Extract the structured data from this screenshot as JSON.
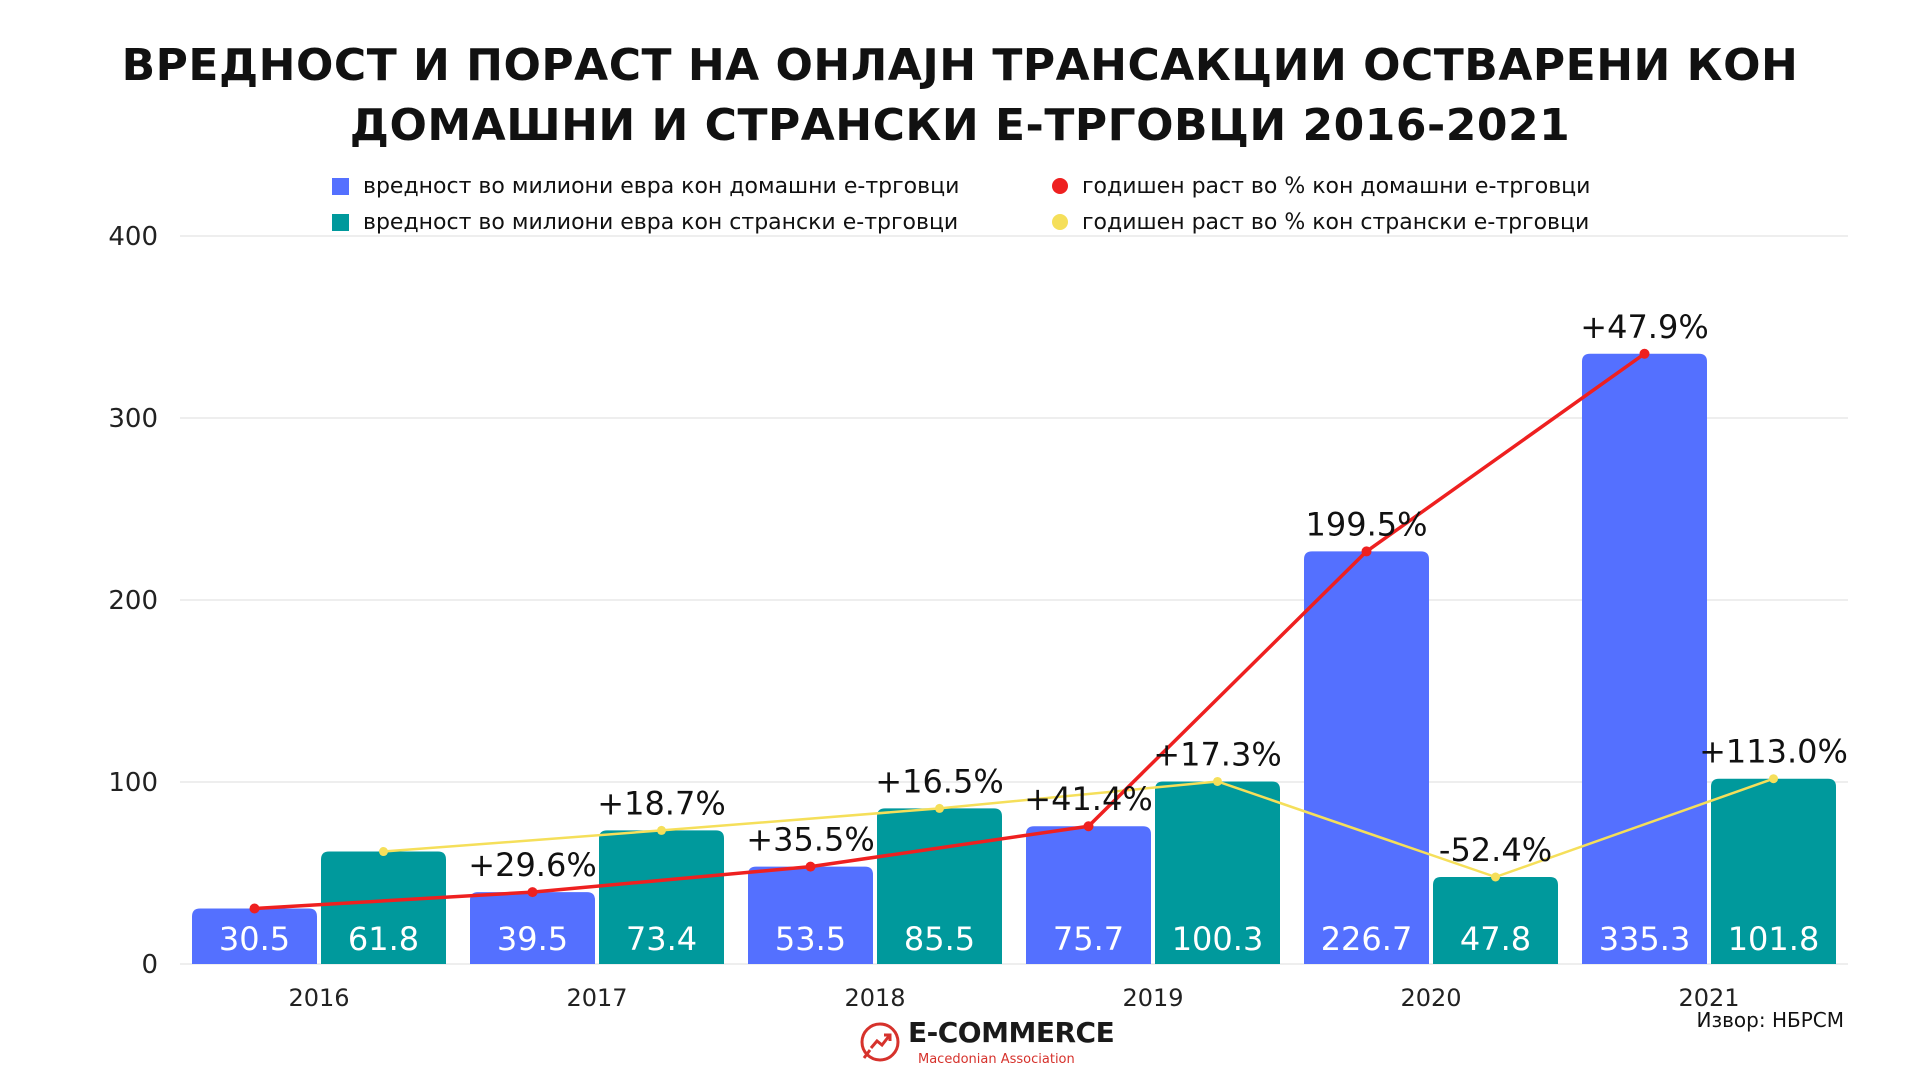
{
  "title_lines": [
    "ВРЕДНОСТ И ПОРАСТ НА ОНЛАЈН ТРАНСАКЦИИ ОСТВАРЕНИ КОН",
    "ДОМАШНИ И СТРАНСКИ Е-ТРГОВЦИ 2016-2021"
  ],
  "legend": {
    "domestic_value": "вредност во милиони евра кон домашни е-трговци",
    "foreign_value": "вредност во милиони евра кон странски е-трговци",
    "domestic_growth": "годишен раст во % кон домашни е-трговци",
    "foreign_growth": "годишен раст во % кон странски е-трговци"
  },
  "source": "Извор: НБРСМ",
  "logo": {
    "main": "E-COMMERCE",
    "sub": "Macedonian Association"
  },
  "colors": {
    "domestic": "#5470FF",
    "foreign": "#00999C",
    "domestic_growth": "#EE2020",
    "foreign_growth": "#F5DF5A",
    "grid": "#dddddd"
  },
  "chart_data": {
    "type": "bar",
    "title": "ВРЕДНОСТ И ПОРАСТ НА ОНЛАЈН ТРАНСАКЦИИ ОСТВАРЕНИ КОН ДОМАШНИ И СТРАНСКИ Е-ТРГОВЦИ 2016-2021",
    "categories": [
      "2016",
      "2017",
      "2018",
      "2019",
      "2020",
      "2021"
    ],
    "ylim": [
      0,
      400
    ],
    "yticks": [
      0,
      100,
      200,
      300,
      400
    ],
    "grid": true,
    "legend_position": "top",
    "series": [
      {
        "name": "вредност во милиони евра кон домашни е-трговци",
        "kind": "bar",
        "values": [
          30.5,
          39.5,
          53.5,
          75.7,
          226.7,
          335.3
        ],
        "labels": [
          "30.5",
          "39.5",
          "53.5",
          "75.7",
          "226.7",
          "335.3"
        ]
      },
      {
        "name": "вредност во милиони евра кон странски е-трговци",
        "kind": "bar",
        "values": [
          61.8,
          73.4,
          85.5,
          100.3,
          47.8,
          101.8
        ],
        "labels": [
          "61.8",
          "73.4",
          "85.5",
          "100.3",
          "47.8",
          "101.8"
        ]
      },
      {
        "name": "годишен раст во % кон домашни е-трговци",
        "kind": "line",
        "anchor": "domestic",
        "growth_labels": [
          "",
          "+29.6%",
          "+35.5%",
          "+41.4%",
          "199.5%",
          "+47.9%"
        ]
      },
      {
        "name": "годишен раст во % кон странски е-трговци",
        "kind": "line",
        "anchor": "foreign",
        "growth_labels": [
          "",
          "+18.7%",
          "+16.5%",
          "+17.3%",
          "-52.4%",
          "+113.0%"
        ]
      }
    ]
  }
}
